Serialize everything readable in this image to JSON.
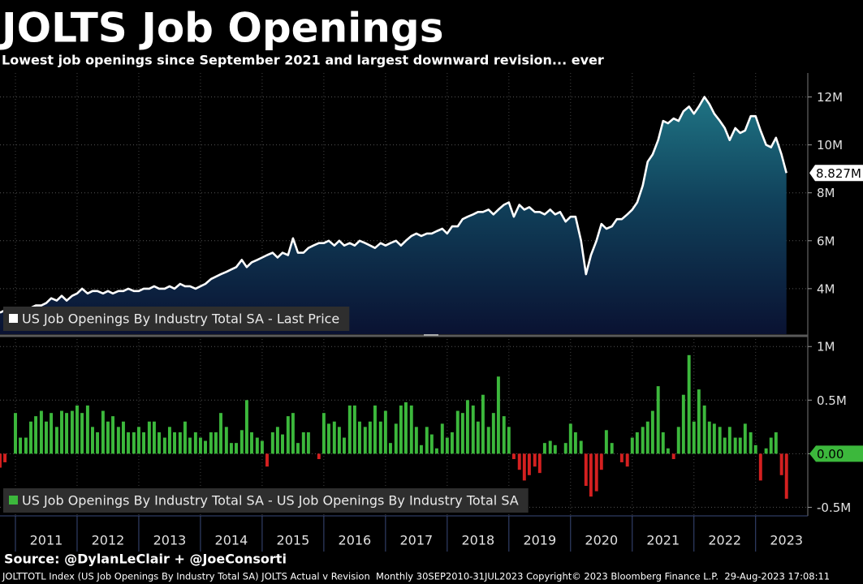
{
  "title": "JOLTS Job Openings",
  "subtitle": "Lowest job openings since September 2021 and largest downward revision... ever",
  "source": "Source: @DylanLeClair + @JoeConsorti",
  "footer": "JOLTTOTL Index (US Job Openings By Industry Total SA) JOLTS Actual v Revision  Monthly 30SEP2010-31JUL2023 Copyright© 2023 Bloomberg Finance L.P.  29-Aug-2023 17:08:11",
  "chart_data": [
    {
      "type": "area",
      "xlim": [
        2010.75,
        2023.78
      ],
      "ylim": [
        2100000,
        13000000
      ],
      "yticks": [
        {
          "value": 4000000,
          "label": "4M"
        },
        {
          "value": 6000000,
          "label": "6M"
        },
        {
          "value": 8000000,
          "label": "8M"
        },
        {
          "value": 10000000,
          "label": "10M"
        },
        {
          "value": 12000000,
          "label": "12M"
        }
      ],
      "grid": true,
      "last_value_label": {
        "value": 8827000,
        "label": "8.827M"
      },
      "x": [
        2010.75,
        2010.83,
        2010.92,
        2011,
        2011.08,
        2011.17,
        2011.25,
        2011.33,
        2011.42,
        2011.5,
        2011.58,
        2011.67,
        2011.75,
        2011.83,
        2011.92,
        2012,
        2012.08,
        2012.17,
        2012.25,
        2012.33,
        2012.42,
        2012.5,
        2012.58,
        2012.67,
        2012.75,
        2012.83,
        2012.92,
        2013,
        2013.08,
        2013.17,
        2013.25,
        2013.33,
        2013.42,
        2013.5,
        2013.58,
        2013.67,
        2013.75,
        2013.83,
        2013.92,
        2014,
        2014.08,
        2014.17,
        2014.25,
        2014.33,
        2014.42,
        2014.5,
        2014.58,
        2014.67,
        2014.75,
        2014.83,
        2014.92,
        2015,
        2015.08,
        2015.17,
        2015.25,
        2015.33,
        2015.42,
        2015.5,
        2015.58,
        2015.67,
        2015.75,
        2015.83,
        2015.92,
        2016,
        2016.08,
        2016.17,
        2016.25,
        2016.33,
        2016.42,
        2016.5,
        2016.58,
        2016.67,
        2016.75,
        2016.83,
        2016.92,
        2017,
        2017.08,
        2017.17,
        2017.25,
        2017.33,
        2017.42,
        2017.5,
        2017.58,
        2017.67,
        2017.75,
        2017.83,
        2017.92,
        2018,
        2018.08,
        2018.17,
        2018.25,
        2018.33,
        2018.42,
        2018.5,
        2018.58,
        2018.67,
        2018.75,
        2018.83,
        2018.92,
        2019,
        2019.08,
        2019.17,
        2019.25,
        2019.33,
        2019.42,
        2019.5,
        2019.58,
        2019.67,
        2019.75,
        2019.83,
        2019.92,
        2020,
        2020.08,
        2020.17,
        2020.25,
        2020.33,
        2020.42,
        2020.5,
        2020.58,
        2020.67,
        2020.75,
        2020.83,
        2020.92,
        2021,
        2021.08,
        2021.17,
        2021.25,
        2021.33,
        2021.42,
        2021.5,
        2021.58,
        2021.67,
        2021.75,
        2021.83,
        2021.92,
        2022,
        2022.08,
        2022.17,
        2022.25,
        2022.33,
        2022.42,
        2022.5,
        2022.58,
        2022.67,
        2022.75,
        2022.83,
        2022.92,
        2023,
        2023.08,
        2023.17,
        2023.25,
        2023.33,
        2023.42,
        2023.5
      ],
      "series": [
        {
          "name": "US Job Openings By Industry Total SA - Last Price",
          "color": "#ffffff",
          "values": [
            3000000,
            3100000,
            3100000,
            3100000,
            3200000,
            3100000,
            3200000,
            3300000,
            3300000,
            3400000,
            3600000,
            3500000,
            3700000,
            3500000,
            3700000,
            3800000,
            4000000,
            3800000,
            3900000,
            3900000,
            3800000,
            3900000,
            3800000,
            3900000,
            3900000,
            4000000,
            3900000,
            3900000,
            4000000,
            4000000,
            4100000,
            4000000,
            4000000,
            4100000,
            4000000,
            4200000,
            4100000,
            4100000,
            4000000,
            4100000,
            4200000,
            4400000,
            4500000,
            4600000,
            4700000,
            4800000,
            4900000,
            5200000,
            4900000,
            5100000,
            5200000,
            5300000,
            5400000,
            5500000,
            5300000,
            5500000,
            5400000,
            6100000,
            5500000,
            5500000,
            5700000,
            5800000,
            5900000,
            5900000,
            6000000,
            5800000,
            6000000,
            5800000,
            5900000,
            5800000,
            6000000,
            5900000,
            5800000,
            5700000,
            5900000,
            5800000,
            5900000,
            6000000,
            5800000,
            6000000,
            6200000,
            6300000,
            6200000,
            6300000,
            6300000,
            6400000,
            6500000,
            6300000,
            6600000,
            6600000,
            6900000,
            7000000,
            7100000,
            7200000,
            7200000,
            7300000,
            7100000,
            7300000,
            7500000,
            7600000,
            7000000,
            7500000,
            7300000,
            7400000,
            7200000,
            7200000,
            7100000,
            7300000,
            7100000,
            7200000,
            6800000,
            7000000,
            7000000,
            6000000,
            4600000,
            5400000,
            6000000,
            6700000,
            6500000,
            6600000,
            6900000,
            6900000,
            7100000,
            7300000,
            7600000,
            8300000,
            9300000,
            9600000,
            10200000,
            11000000,
            10900000,
            11100000,
            11000000,
            11400000,
            11600000,
            11300000,
            11600000,
            12000000,
            11700000,
            11300000,
            11000000,
            10700000,
            10200000,
            10700000,
            10500000,
            10600000,
            11200000,
            11200000,
            10600000,
            10000000,
            9900000,
            10300000,
            9600000,
            8827000
          ]
        }
      ]
    },
    {
      "type": "bar",
      "xlim": [
        2010.75,
        2023.78
      ],
      "ylim": [
        -580000,
        1070000
      ],
      "xticks": [
        {
          "value": 2011,
          "label": "2011"
        },
        {
          "value": 2012,
          "label": "2012"
        },
        {
          "value": 2013,
          "label": "2013"
        },
        {
          "value": 2014,
          "label": "2014"
        },
        {
          "value": 2015,
          "label": "2015"
        },
        {
          "value": 2016,
          "label": "2016"
        },
        {
          "value": 2017,
          "label": "2017"
        },
        {
          "value": 2018,
          "label": "2018"
        },
        {
          "value": 2019,
          "label": "2019"
        },
        {
          "value": 2020,
          "label": "2020"
        },
        {
          "value": 2021,
          "label": "2021"
        },
        {
          "value": 2022,
          "label": "2022"
        },
        {
          "value": 2023,
          "label": "2023"
        }
      ],
      "yticks": [
        {
          "value": -500000,
          "label": "-0.5M"
        },
        {
          "value": 0,
          "label": "0.00"
        },
        {
          "value": 500000,
          "label": "0.5M"
        },
        {
          "value": 1000000,
          "label": "1M"
        }
      ],
      "grid": true,
      "negative_color": "#d42020",
      "x": [
        2010.75,
        2010.83,
        2010.92,
        2011,
        2011.08,
        2011.17,
        2011.25,
        2011.33,
        2011.42,
        2011.5,
        2011.58,
        2011.67,
        2011.75,
        2011.83,
        2011.92,
        2012,
        2012.08,
        2012.17,
        2012.25,
        2012.33,
        2012.42,
        2012.5,
        2012.58,
        2012.67,
        2012.75,
        2012.83,
        2012.92,
        2013,
        2013.08,
        2013.17,
        2013.25,
        2013.33,
        2013.42,
        2013.5,
        2013.58,
        2013.67,
        2013.75,
        2013.83,
        2013.92,
        2014,
        2014.08,
        2014.17,
        2014.25,
        2014.33,
        2014.42,
        2014.5,
        2014.58,
        2014.67,
        2014.75,
        2014.83,
        2014.92,
        2015,
        2015.08,
        2015.17,
        2015.25,
        2015.33,
        2015.42,
        2015.5,
        2015.58,
        2015.67,
        2015.75,
        2015.83,
        2015.92,
        2016,
        2016.08,
        2016.17,
        2016.25,
        2016.33,
        2016.42,
        2016.5,
        2016.58,
        2016.67,
        2016.75,
        2016.83,
        2016.92,
        2017,
        2017.08,
        2017.17,
        2017.25,
        2017.33,
        2017.42,
        2017.5,
        2017.58,
        2017.67,
        2017.75,
        2017.83,
        2017.92,
        2018,
        2018.08,
        2018.17,
        2018.25,
        2018.33,
        2018.42,
        2018.5,
        2018.58,
        2018.67,
        2018.75,
        2018.83,
        2018.92,
        2019,
        2019.08,
        2019.17,
        2019.25,
        2019.33,
        2019.42,
        2019.5,
        2019.58,
        2019.67,
        2019.75,
        2019.83,
        2019.92,
        2020,
        2020.08,
        2020.17,
        2020.25,
        2020.33,
        2020.42,
        2020.5,
        2020.58,
        2020.67,
        2020.75,
        2020.83,
        2020.92,
        2021,
        2021.08,
        2021.17,
        2021.25,
        2021.33,
        2021.42,
        2021.5,
        2021.58,
        2021.67,
        2021.75,
        2021.83,
        2021.92,
        2022,
        2022.08,
        2022.17,
        2022.25,
        2022.33,
        2022.42,
        2022.5,
        2022.58,
        2022.67,
        2022.75,
        2022.83,
        2022.92,
        2023,
        2023.08,
        2023.17,
        2023.25,
        2023.33,
        2023.42,
        2023.5
      ],
      "series": [
        {
          "name": "US Job Openings By Industry Total SA - US Job Openings By Industry Total SA",
          "color": "#3cb83c",
          "values": [
            -130000,
            -80000,
            0,
            380000,
            150000,
            150000,
            300000,
            350000,
            400000,
            300000,
            380000,
            250000,
            400000,
            380000,
            400000,
            450000,
            380000,
            450000,
            250000,
            200000,
            400000,
            300000,
            350000,
            250000,
            300000,
            200000,
            200000,
            250000,
            200000,
            300000,
            300000,
            200000,
            150000,
            250000,
            200000,
            200000,
            300000,
            150000,
            200000,
            150000,
            120000,
            200000,
            200000,
            380000,
            250000,
            100000,
            100000,
            220000,
            500000,
            200000,
            150000,
            120000,
            -120000,
            200000,
            250000,
            180000,
            350000,
            380000,
            100000,
            200000,
            200000,
            0,
            -50000,
            380000,
            280000,
            300000,
            250000,
            150000,
            450000,
            450000,
            300000,
            250000,
            300000,
            450000,
            300000,
            400000,
            100000,
            280000,
            450000,
            480000,
            450000,
            250000,
            80000,
            250000,
            180000,
            50000,
            280000,
            150000,
            200000,
            400000,
            380000,
            500000,
            450000,
            300000,
            550000,
            250000,
            380000,
            720000,
            350000,
            250000,
            -50000,
            -150000,
            -250000,
            -200000,
            -120000,
            -180000,
            100000,
            120000,
            80000,
            0,
            100000,
            280000,
            200000,
            120000,
            -300000,
            -400000,
            -350000,
            -150000,
            220000,
            100000,
            0,
            -80000,
            -120000,
            150000,
            200000,
            250000,
            300000,
            400000,
            630000,
            200000,
            50000,
            -50000,
            250000,
            550000,
            920000,
            300000,
            600000,
            450000,
            300000,
            280000,
            250000,
            150000,
            250000,
            150000,
            150000,
            280000,
            200000,
            80000,
            -250000,
            50000,
            150000,
            200000,
            -200000,
            -420000
          ]
        }
      ]
    }
  ]
}
